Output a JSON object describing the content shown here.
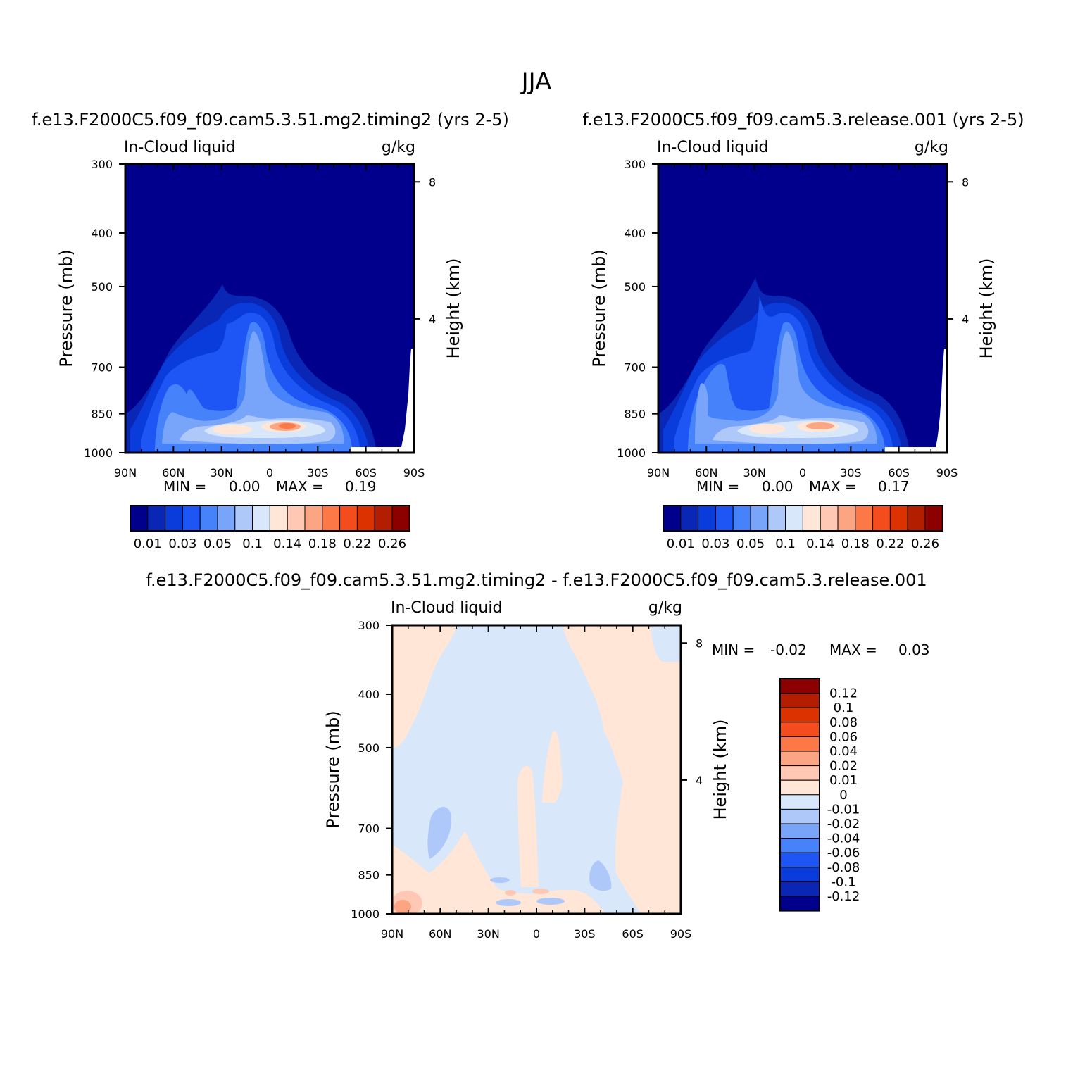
{
  "figure": {
    "title": "JJA"
  },
  "colors": {
    "levels_abs": [
      "#00008c",
      "#0a26b4",
      "#0a3cdc",
      "#1e55f5",
      "#4682fa",
      "#78a5fa",
      "#afc8fa",
      "#d8e8fa",
      "#ffe6d7",
      "#ffc8b4",
      "#fca582",
      "#fc7846",
      "#f54c1e",
      "#dc3200",
      "#b41e00",
      "#8c0000"
    ],
    "levels_diff": [
      "#00008c",
      "#0a26b4",
      "#0a3cdc",
      "#1e55f5",
      "#4682fa",
      "#78a5fa",
      "#afc8fa",
      "#d8e8fa",
      "#ffe6d7",
      "#ffc8b4",
      "#fca582",
      "#fc7846",
      "#f54c1e",
      "#dc3200",
      "#b41e00",
      "#8c0000"
    ]
  },
  "chart_data": [
    {
      "type": "heatmap",
      "title": "f.e13.F2000C5.f09_f09.cam5.3.51.mg2.timing2 (yrs 2-5)",
      "left_label": "In-Cloud liquid",
      "right_label": "g/kg",
      "xlabel": "",
      "ylabel": "Pressure (mb)",
      "ylabel_right": "Height (km)",
      "x_ticks": [
        "90N",
        "60N",
        "30N",
        "0",
        "30S",
        "60S",
        "90S"
      ],
      "y_ticks": [
        "300",
        "400",
        "500",
        "700",
        "850",
        "1000"
      ],
      "y_right_ticks": [
        "8",
        "4"
      ],
      "ylim": [
        1000,
        300
      ],
      "stats": {
        "min_label": "MIN =",
        "min": "0.00",
        "max_label": "MAX =",
        "max": "0.19"
      },
      "colorbar": {
        "labels": [
          "0.01",
          "0.03",
          "0.05",
          "0.1",
          "0.14",
          "0.18",
          "0.22",
          "0.26"
        ]
      }
    },
    {
      "type": "heatmap",
      "title": "f.e13.F2000C5.f09_f09.cam5.3.release.001 (yrs 2-5)",
      "left_label": "In-Cloud liquid",
      "right_label": "g/kg",
      "xlabel": "",
      "ylabel": "Pressure (mb)",
      "ylabel_right": "Height (km)",
      "x_ticks": [
        "90N",
        "60N",
        "30N",
        "0",
        "30S",
        "60S",
        "90S"
      ],
      "y_ticks": [
        "300",
        "400",
        "500",
        "700",
        "850",
        "1000"
      ],
      "y_right_ticks": [
        "8",
        "4"
      ],
      "ylim": [
        1000,
        300
      ],
      "stats": {
        "min_label": "MIN =",
        "min": "0.00",
        "max_label": "MAX =",
        "max": "0.17"
      },
      "colorbar": {
        "labels": [
          "0.01",
          "0.03",
          "0.05",
          "0.1",
          "0.14",
          "0.18",
          "0.22",
          "0.26"
        ]
      }
    },
    {
      "type": "heatmap",
      "title": "f.e13.F2000C5.f09_f09.cam5.3.51.mg2.timing2 - f.e13.F2000C5.f09_f09.cam5.3.release.001",
      "left_label": "In-Cloud liquid",
      "right_label": "g/kg",
      "xlabel": "",
      "ylabel": "Pressure (mb)",
      "ylabel_right": "Height (km)",
      "x_ticks": [
        "90N",
        "60N",
        "30N",
        "0",
        "30S",
        "60S",
        "90S"
      ],
      "y_ticks": [
        "300",
        "400",
        "500",
        "700",
        "850",
        "1000"
      ],
      "y_right_ticks": [
        "8",
        "4"
      ],
      "ylim": [
        1000,
        300
      ],
      "stats": {
        "min_label": "MIN =",
        "min": "-0.02",
        "max_label": "MAX =",
        "max": "0.03"
      },
      "colorbar": {
        "labels": [
          "0.12",
          "0.1",
          "0.08",
          "0.06",
          "0.04",
          "0.02",
          "0.01",
          "0",
          "-0.01",
          "-0.02",
          "-0.04",
          "-0.06",
          "-0.08",
          "-0.1",
          "-0.12"
        ]
      }
    }
  ]
}
